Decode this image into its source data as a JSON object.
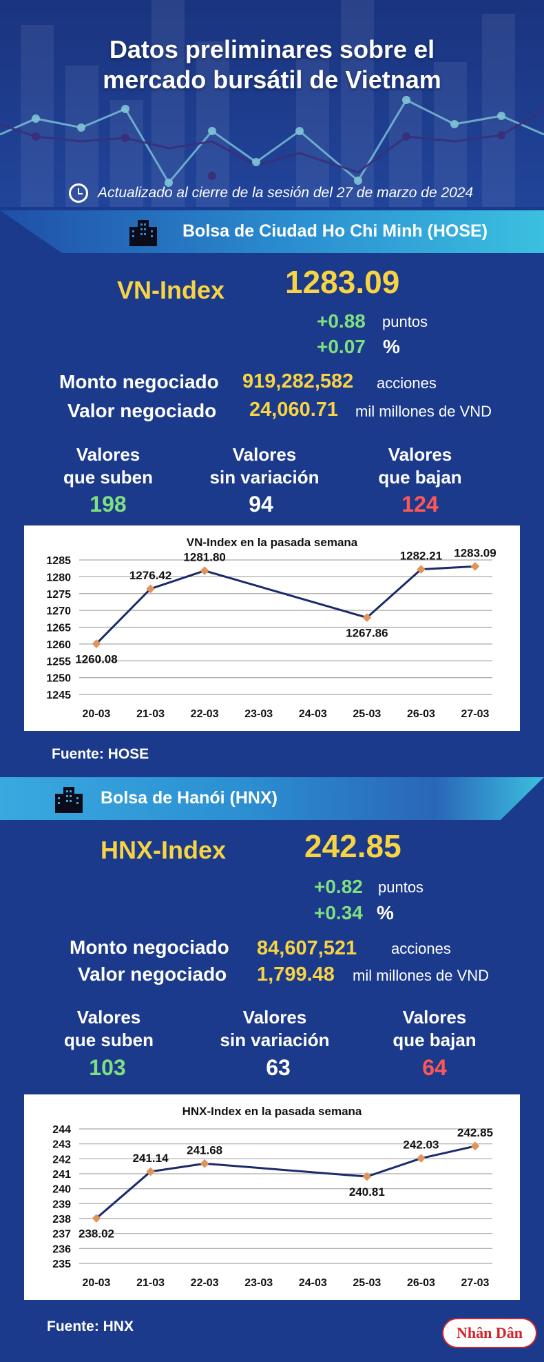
{
  "title_line1": "Datos preliminares sobre el",
  "title_line2": "mercado bursátil de Vietnam",
  "updated": "Actualizado al cierre de la sesión del 27 de marzo de 2024",
  "hose": {
    "banner": "Bolsa de Ciudad Ho Chi Minh (HOSE)",
    "index_name": "VN-Index",
    "index_value": "1283.09",
    "change_points": "+0.88",
    "points_unit": "puntos",
    "change_pct": "+0.07",
    "pct_unit": "%",
    "volume_label": "Monto negociado",
    "volume_value": "919,282,582",
    "volume_unit": "acciones",
    "value_label": "Valor negociado",
    "value_value": "24,060.71",
    "value_unit": "mil millones de VND",
    "up_label_1": "Valores",
    "up_label_2": "que suben",
    "up_count": "198",
    "flat_label_1": "Valores",
    "flat_label_2": "sin variación",
    "flat_count": "94",
    "down_label_1": "Valores",
    "down_label_2": "que bajan",
    "down_count": "124",
    "source": "Fuente: HOSE"
  },
  "hnx": {
    "banner": "Bolsa de Hanói (HNX)",
    "index_name": "HNX-Index",
    "index_value": "242.85",
    "change_points": "+0.82",
    "points_unit": "puntos",
    "change_pct": "+0.34",
    "pct_unit": "%",
    "volume_label": "Monto negociado",
    "volume_value": "84,607,521",
    "volume_unit": "acciones",
    "value_label": "Valor negociado",
    "value_value": "1,799.48",
    "value_unit": "mil millones de VND",
    "up_label_1": "Valores",
    "up_label_2": "que suben",
    "up_count": "103",
    "flat_label_1": "Valores",
    "flat_label_2": "sin variación",
    "flat_count": "63",
    "down_label_1": "Valores",
    "down_label_2": "que bajan",
    "down_count": "64",
    "source": "Fuente:  HNX"
  },
  "logo_text": "Nhân Dân",
  "colors": {
    "background": "#1c3a8c",
    "accent_yellow": "#f8d443",
    "up_green": "#7fe07f",
    "down_red": "#ff5656",
    "line": "#1b2a6b",
    "marker": "#e0945a"
  },
  "chart_data": [
    {
      "type": "line",
      "title": "VN-Index en la pasada semana",
      "categories": [
        "20-03",
        "21-03",
        "22-03",
        "23-03",
        "24-03",
        "25-03",
        "26-03",
        "27-03"
      ],
      "series": [
        {
          "values": [
            1260.08,
            1276.42,
            1281.8,
            null,
            null,
            1267.86,
            1282.21,
            1283.09
          ]
        }
      ],
      "value_labels": [
        "1260.08",
        "1276.42",
        "1281.80",
        "",
        "",
        "1267.86",
        "1282.21",
        "1283.09"
      ],
      "label_position": [
        "below",
        "above",
        "above",
        "",
        "",
        "below",
        "above",
        "above"
      ],
      "ylim": [
        1245,
        1285
      ],
      "yticks": [
        1245,
        1250,
        1255,
        1260,
        1265,
        1270,
        1275,
        1280,
        1285
      ],
      "grid": true,
      "xlabel": "",
      "ylabel": ""
    },
    {
      "type": "line",
      "title": "HNX-Index en la pasada semana",
      "categories": [
        "20-03",
        "21-03",
        "22-03",
        "23-03",
        "24-03",
        "25-03",
        "26-03",
        "27-03"
      ],
      "series": [
        {
          "values": [
            238.02,
            241.14,
            241.68,
            null,
            null,
            240.81,
            242.03,
            242.85
          ]
        }
      ],
      "value_labels": [
        "238.02",
        "241.14",
        "241.68",
        "",
        "",
        "240.81",
        "242.03",
        "242.85"
      ],
      "label_position": [
        "below",
        "above",
        "above",
        "",
        "",
        "below",
        "above",
        "above"
      ],
      "ylim": [
        235,
        244
      ],
      "yticks": [
        235,
        236,
        237,
        238,
        239,
        240,
        241,
        242,
        243,
        244
      ],
      "grid": true,
      "xlabel": "",
      "ylabel": ""
    }
  ]
}
